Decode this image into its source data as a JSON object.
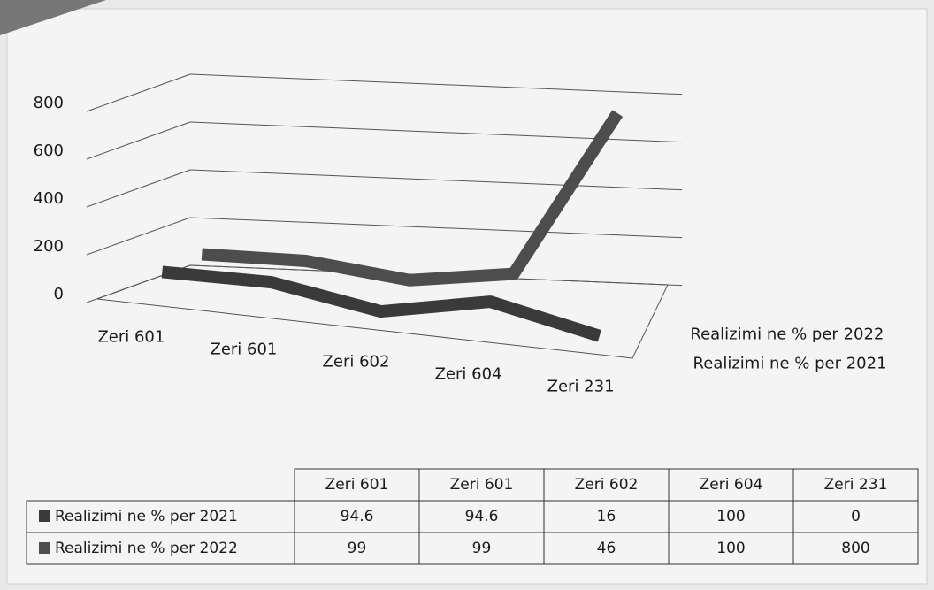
{
  "chart_data": {
    "type": "line",
    "categories": [
      "Zeri 601",
      "Zeri 601",
      "Zeri 602",
      "Zeri 604",
      "Zeri 231"
    ],
    "series": [
      {
        "name": "Realizimi ne % per 2021",
        "color": "#3a3a3a",
        "values": [
          94.6,
          94.6,
          16,
          100,
          0
        ]
      },
      {
        "name": "Realizimi ne % per 2022",
        "color": "#4d4d4d",
        "values": [
          99,
          99,
          46,
          100,
          800
        ]
      }
    ],
    "ylim": [
      0,
      800
    ],
    "yticks": [
      0,
      200,
      400,
      600,
      800
    ],
    "grid": true,
    "data_table": true
  }
}
